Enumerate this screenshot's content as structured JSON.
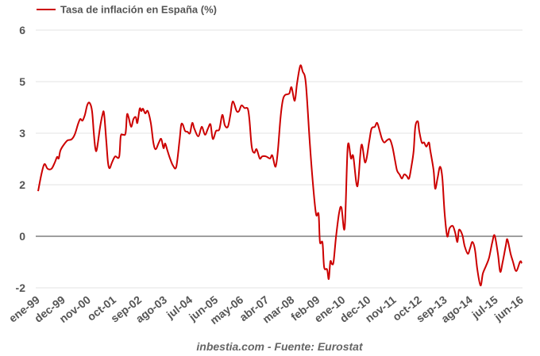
{
  "chart_data": {
    "type": "line",
    "title": "",
    "xlabel": "",
    "ylabel": "",
    "x_unit": "months since ene-99",
    "xlim": [
      0,
      209
    ],
    "ytick_labels": [
      "6",
      "5",
      "3",
      "2",
      "0",
      "-2"
    ],
    "ytick_values": [
      6,
      5,
      3,
      2,
      0,
      -2
    ],
    "xtick_labels": [
      "ene-99",
      "dec-99",
      "nov-00",
      "oct-01",
      "sep-02",
      "ago-03",
      "jul-04",
      "jun-05",
      "may-06",
      "abr-07",
      "mar-08",
      "feb-09",
      "ene-10",
      "dec-10",
      "nov-11",
      "oct-12",
      "sep-13",
      "ago-14",
      "jul-15",
      "jun-16"
    ],
    "xtick_months": [
      0,
      11,
      22,
      33,
      44,
      55,
      66,
      77,
      88,
      99,
      110,
      121,
      132,
      143,
      154,
      165,
      176,
      187,
      198,
      209
    ],
    "grid": true,
    "legend_position": "top-left",
    "series": [
      {
        "name": "Tasa de inflación en España (%)",
        "color": "#cc0000",
        "points": [
          [
            0,
            1.75
          ],
          [
            1.4,
            2.2
          ],
          [
            2.7,
            2.4
          ],
          [
            4.1,
            2.31
          ],
          [
            5.8,
            2.31
          ],
          [
            7.2,
            2.43
          ],
          [
            8.2,
            2.54
          ],
          [
            8.9,
            2.51
          ],
          [
            9.6,
            2.66
          ],
          [
            11,
            2.77
          ],
          [
            12.7,
            2.86
          ],
          [
            14.4,
            2.88
          ],
          [
            15.8,
            2.97
          ],
          [
            17.2,
            3.34
          ],
          [
            18.2,
            3.55
          ],
          [
            19.2,
            3.49
          ],
          [
            20.2,
            3.71
          ],
          [
            21.3,
            4.11
          ],
          [
            22.3,
            4.17
          ],
          [
            23.3,
            3.86
          ],
          [
            24,
            3.09
          ],
          [
            24.7,
            2.71
          ],
          [
            25.4,
            2.69
          ],
          [
            26.8,
            3.25
          ],
          [
            27.8,
            3.71
          ],
          [
            28.5,
            3.77
          ],
          [
            29.5,
            2.82
          ],
          [
            30.2,
            2.43
          ],
          [
            30.9,
            2.32
          ],
          [
            31.9,
            2.43
          ],
          [
            33.3,
            2.55
          ],
          [
            35,
            2.54
          ],
          [
            35.7,
            2.94
          ],
          [
            36.7,
            2.97
          ],
          [
            37.8,
            3
          ],
          [
            38.4,
            3.71
          ],
          [
            39.1,
            3.62
          ],
          [
            40.2,
            3.25
          ],
          [
            41.2,
            3.55
          ],
          [
            42.2,
            3.62
          ],
          [
            42.9,
            3.4
          ],
          [
            43.9,
            3.95
          ],
          [
            44.6,
            3.86
          ],
          [
            45.3,
            3.95
          ],
          [
            46.3,
            3.77
          ],
          [
            47.4,
            3.86
          ],
          [
            48.7,
            3.4
          ],
          [
            49.8,
            2.82
          ],
          [
            50.8,
            2.69
          ],
          [
            52.2,
            2.82
          ],
          [
            53.2,
            2.89
          ],
          [
            54.2,
            2.71
          ],
          [
            54.9,
            2.8
          ],
          [
            55.9,
            2.66
          ],
          [
            57,
            2.51
          ],
          [
            58.3,
            2.37
          ],
          [
            59.7,
            2.35
          ],
          [
            61.1,
            2.85
          ],
          [
            61.8,
            3.31
          ],
          [
            62.5,
            3.34
          ],
          [
            63.5,
            3.09
          ],
          [
            64.5,
            3.06
          ],
          [
            65.6,
            3
          ],
          [
            66.6,
            3.4
          ],
          [
            67.6,
            3.15
          ],
          [
            69.3,
            2.94
          ],
          [
            70.7,
            3.25
          ],
          [
            72.1,
            2.97
          ],
          [
            73.4,
            3.18
          ],
          [
            74.5,
            3.34
          ],
          [
            75.5,
            2.89
          ],
          [
            76.9,
            3.09
          ],
          [
            78.3,
            3.15
          ],
          [
            79.6,
            3.71
          ],
          [
            80.7,
            3.31
          ],
          [
            82,
            3.25
          ],
          [
            83.1,
            3.71
          ],
          [
            84.1,
            4.23
          ],
          [
            85.8,
            3.86
          ],
          [
            86.8,
            3.86
          ],
          [
            87.9,
            4.08
          ],
          [
            89.2,
            3.98
          ],
          [
            90.6,
            3.95
          ],
          [
            91.3,
            3.55
          ],
          [
            92.3,
            2.74
          ],
          [
            93.4,
            2.62
          ],
          [
            94.4,
            2.69
          ],
          [
            95.8,
            2.51
          ],
          [
            96.8,
            2.55
          ],
          [
            98.5,
            2.55
          ],
          [
            100.2,
            2.51
          ],
          [
            101.2,
            2.57
          ],
          [
            102.6,
            2.35
          ],
          [
            103.6,
            2.66
          ],
          [
            104.7,
            3.55
          ],
          [
            105.7,
            4.26
          ],
          [
            106.7,
            4.48
          ],
          [
            108.5,
            4.54
          ],
          [
            109.5,
            4.78
          ],
          [
            110.9,
            4.26
          ],
          [
            111.9,
            4.94
          ],
          [
            113.3,
            5.31
          ],
          [
            114.3,
            5.2
          ],
          [
            115.7,
            4.94
          ],
          [
            117.4,
            2.82
          ],
          [
            118.7,
            2.05
          ],
          [
            120.1,
            0.86
          ],
          [
            121.2,
            0.86
          ],
          [
            121.8,
            -0.22
          ],
          [
            122.9,
            -0.25
          ],
          [
            123.6,
            -1.2
          ],
          [
            124.9,
            -1.29
          ],
          [
            125.6,
            -1.66
          ],
          [
            126.3,
            -0.98
          ],
          [
            127,
            -1.08
          ],
          [
            127.7,
            -0.98
          ],
          [
            128.7,
            -0.06
          ],
          [
            130.1,
            0.92
          ],
          [
            131.1,
            1.11
          ],
          [
            132.5,
            0.34
          ],
          [
            133.8,
            2.74
          ],
          [
            135.2,
            2.51
          ],
          [
            136.2,
            2.55
          ],
          [
            138,
            1.94
          ],
          [
            139.7,
            2.77
          ],
          [
            141.4,
            2.43
          ],
          [
            143.1,
            2.85
          ],
          [
            144.1,
            3.18
          ],
          [
            145.5,
            3.25
          ],
          [
            146.5,
            3.4
          ],
          [
            147.6,
            3.09
          ],
          [
            148.6,
            2.89
          ],
          [
            149.6,
            2.82
          ],
          [
            150.7,
            2.86
          ],
          [
            152,
            2.88
          ],
          [
            153.1,
            2.74
          ],
          [
            154.1,
            2.51
          ],
          [
            155.1,
            2.28
          ],
          [
            156.2,
            2.2
          ],
          [
            157.2,
            2.12
          ],
          [
            158.2,
            2.2
          ],
          [
            159.3,
            2.17
          ],
          [
            160.3,
            2.12
          ],
          [
            161.3,
            2.35
          ],
          [
            162.3,
            2.66
          ],
          [
            163,
            3.25
          ],
          [
            164.1,
            3.46
          ],
          [
            164.7,
            3.09
          ],
          [
            165.8,
            2.82
          ],
          [
            166.8,
            2.82
          ],
          [
            167.8,
            2.74
          ],
          [
            168.9,
            2.82
          ],
          [
            169.5,
            2.66
          ],
          [
            170.9,
            2.28
          ],
          [
            171.6,
            1.85
          ],
          [
            172.6,
            2.12
          ],
          [
            173.7,
            2.35
          ],
          [
            174.7,
            2.12
          ],
          [
            175.7,
            0.86
          ],
          [
            176.8,
            0
          ],
          [
            177.8,
            0.31
          ],
          [
            179.2,
            0.4
          ],
          [
            180.2,
            0.15
          ],
          [
            181.2,
            -0.22
          ],
          [
            181.9,
            0.25
          ],
          [
            183.3,
            0.06
          ],
          [
            184.3,
            -0.37
          ],
          [
            185.7,
            -0.68
          ],
          [
            186.7,
            -0.46
          ],
          [
            187.7,
            -0.22
          ],
          [
            188.8,
            -0.52
          ],
          [
            189.8,
            -1.29
          ],
          [
            191.2,
            -1.91
          ],
          [
            192.2,
            -1.45
          ],
          [
            193.6,
            -1.14
          ],
          [
            194.9,
            -0.83
          ],
          [
            196.3,
            -0.22
          ],
          [
            197.3,
            0.03
          ],
          [
            198.7,
            -0.68
          ],
          [
            199.7,
            -1.38
          ],
          [
            200.8,
            -0.98
          ],
          [
            202.1,
            -0.37
          ],
          [
            202.8,
            -0.12
          ],
          [
            204.2,
            -0.68
          ],
          [
            205.2,
            -0.98
          ],
          [
            206.6,
            -1.35
          ],
          [
            208.3,
            -0.98
          ],
          [
            209,
            -1.05
          ]
        ]
      }
    ],
    "source_note": "inbestia.com - Fuente: Eurostat"
  }
}
